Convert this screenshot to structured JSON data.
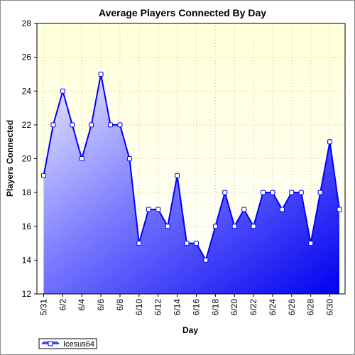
{
  "chart_data": {
    "type": "area",
    "title": "Average Players Connected By Day",
    "xlabel": "Day",
    "ylabel": "Players Connected",
    "ylim": [
      12,
      28
    ],
    "yticks": [
      12,
      14,
      16,
      18,
      20,
      22,
      24,
      26,
      28
    ],
    "x": [
      "5/31",
      "6/1",
      "6/2",
      "6/3",
      "6/4",
      "6/5",
      "6/6",
      "6/7",
      "6/8",
      "6/9",
      "6/10",
      "6/11",
      "6/12",
      "6/13",
      "6/14",
      "6/15",
      "6/16",
      "6/17",
      "6/18",
      "6/19",
      "6/20",
      "6/21",
      "6/22",
      "6/23",
      "6/24",
      "6/25",
      "6/26",
      "6/27",
      "6/28",
      "6/29",
      "6/30",
      "7/1"
    ],
    "xtick_labels": [
      "5/31",
      "6/2",
      "6/4",
      "6/6",
      "6/8",
      "6/10",
      "6/12",
      "6/14",
      "6/16",
      "6/18",
      "6/20",
      "6/22",
      "6/24",
      "6/26",
      "6/28",
      "6/30"
    ],
    "series": [
      {
        "name": "Icesus64",
        "values": [
          19,
          22,
          24,
          22,
          20,
          22,
          25,
          22,
          22,
          20,
          15,
          17,
          17,
          16,
          19,
          15,
          15,
          14,
          16,
          18,
          16,
          17,
          16,
          18,
          18,
          17,
          18,
          18,
          15,
          18,
          21,
          17
        ]
      }
    ],
    "grid": true,
    "legend": "bottom-left",
    "colors": {
      "line": "#0000ff",
      "plot_bg_top": "#ffffd8",
      "fill_light": "#d8d8ff",
      "fill_dark": "#0000ff",
      "grid": "#c8c8a0"
    }
  }
}
